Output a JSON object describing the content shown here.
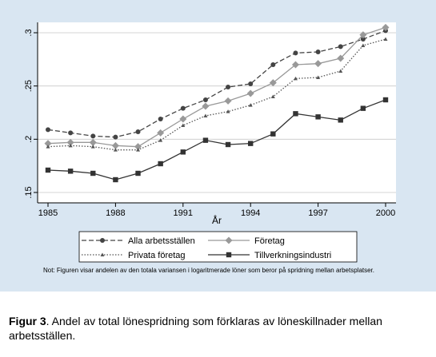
{
  "chart_data": {
    "type": "line",
    "xlabel": "År",
    "ylabel": "",
    "x": [
      1985,
      1986,
      1987,
      1988,
      1989,
      1990,
      1991,
      1992,
      1993,
      1994,
      1995,
      1996,
      1997,
      1998,
      1999,
      2000
    ],
    "xticks": [
      1985,
      1988,
      1991,
      1994,
      1997,
      2000
    ],
    "xtick_labels": [
      "1985",
      "1988",
      "1991",
      "1994",
      "1997",
      "2000"
    ],
    "yticks": [
      0.15,
      0.2,
      0.25,
      0.3
    ],
    "ytick_labels": [
      ".15",
      ".2",
      ".25",
      ".3"
    ],
    "ylim": [
      0.15,
      0.31
    ],
    "grid": "horizontal",
    "legend_placement": "bottom",
    "series": [
      {
        "name": "Alla arbetsställen",
        "style": "dashed",
        "marker": "circle",
        "color": "#444444",
        "values": [
          0.209,
          0.206,
          0.203,
          0.202,
          0.207,
          0.219,
          0.229,
          0.237,
          0.249,
          0.252,
          0.27,
          0.281,
          0.282,
          0.287,
          0.294,
          0.302
        ]
      },
      {
        "name": "Företag",
        "style": "solid",
        "marker": "diamond",
        "color": "#999999",
        "values": [
          0.196,
          0.197,
          0.197,
          0.194,
          0.193,
          0.206,
          0.219,
          0.231,
          0.236,
          0.243,
          0.253,
          0.27,
          0.271,
          0.276,
          0.298,
          0.305
        ]
      },
      {
        "name": "Privata företag",
        "style": "dotted",
        "marker": "triangle",
        "color": "#555555",
        "values": [
          0.193,
          0.194,
          0.193,
          0.19,
          0.19,
          0.199,
          0.213,
          0.222,
          0.226,
          0.232,
          0.24,
          0.257,
          0.258,
          0.264,
          0.288,
          0.294
        ]
      },
      {
        "name": "Tillverkningsindustri",
        "style": "solid",
        "marker": "square",
        "color": "#333333",
        "values": [
          0.171,
          0.17,
          0.168,
          0.162,
          0.168,
          0.177,
          0.188,
          0.199,
          0.195,
          0.196,
          0.205,
          0.224,
          0.221,
          0.218,
          0.229,
          0.237
        ]
      }
    ]
  },
  "note": "Not: Figuren visar andelen av den totala variansen i logaritmerade löner som beror på spridning mellan arbetsplatser.",
  "caption": {
    "label": "Figur 3",
    "text": ". Andel av total lönespridning som förklaras av löneskillnader mellan arbetsställen."
  }
}
